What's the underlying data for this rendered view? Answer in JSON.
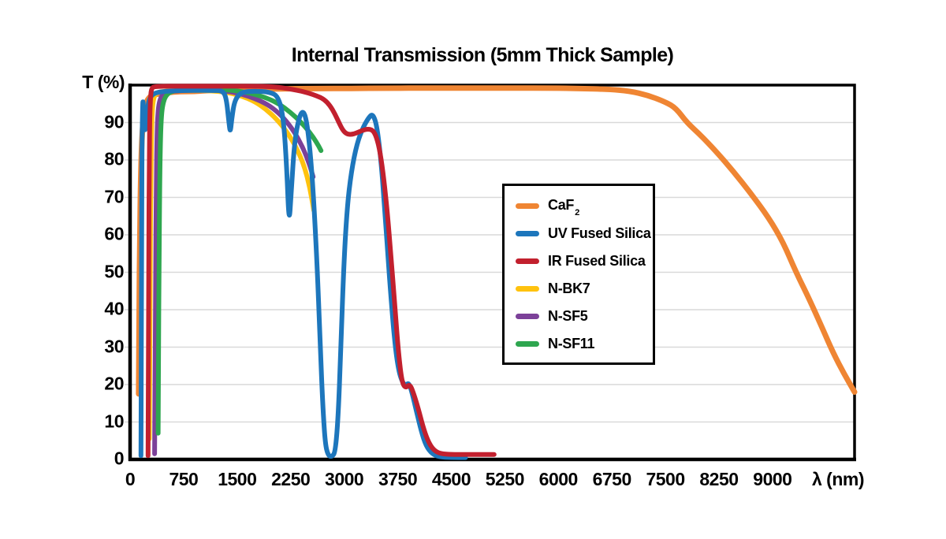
{
  "chart": {
    "title": "Internal Transmission (5mm Thick Sample)",
    "y_axis_label": "T (%)",
    "x_axis_label": "λ (nm)"
  },
  "colors": {
    "caf2": "#EF8533",
    "uv_fused_silica": "#1D76BC",
    "ir_fused_silica": "#C2202E",
    "n_bk7": "#FFC20E",
    "n_sf5": "#7C4199",
    "n_sf11": "#2EA64F",
    "gridline": "#D9D9D9",
    "axis": "#000000",
    "background": "#FFFFFF"
  },
  "legend": {
    "items": [
      {
        "id": "caf2",
        "label": "CaF",
        "sub": "2",
        "color": "#EF8533"
      },
      {
        "id": "uvfs",
        "label": "UV Fused Silica",
        "sub": "",
        "color": "#1D76BC"
      },
      {
        "id": "irfs",
        "label": "IR Fused Silica",
        "sub": "",
        "color": "#C2202E"
      },
      {
        "id": "nbk7",
        "label": "N-BK7",
        "sub": "",
        "color": "#FFC20E"
      },
      {
        "id": "nsf5",
        "label": "N-SF5",
        "sub": "",
        "color": "#7C4199"
      },
      {
        "id": "nsf11",
        "label": "N-SF11",
        "sub": "",
        "color": "#2EA64F"
      }
    ]
  },
  "chart_data": {
    "type": "line",
    "title": "Internal Transmission (5mm Thick Sample)",
    "xlabel": "λ (nm)",
    "ylabel": "T (%)",
    "xlim": [
      0,
      10150
    ],
    "ylim": [
      0,
      100
    ],
    "x_ticks": [
      0,
      750,
      1500,
      2250,
      3000,
      3750,
      4500,
      5250,
      6000,
      6750,
      7500,
      8250,
      9000
    ],
    "y_ticks": [
      0,
      10,
      20,
      30,
      40,
      50,
      60,
      70,
      80,
      90
    ],
    "grid": "horizontal-only",
    "legend_position": "center-right",
    "series": [
      {
        "name": "CaF2",
        "color": "#EF8533",
        "width": 7,
        "points": [
          [
            120,
            17.5
          ],
          [
            128,
            40
          ],
          [
            136,
            60
          ],
          [
            148,
            75
          ],
          [
            163,
            85
          ],
          [
            185,
            91.5
          ],
          [
            210,
            94.5
          ],
          [
            240,
            96
          ],
          [
            280,
            97
          ],
          [
            340,
            97.4
          ],
          [
            420,
            97.7
          ],
          [
            520,
            98
          ],
          [
            700,
            98.3
          ],
          [
            900,
            98.3
          ],
          [
            1100,
            98.6
          ],
          [
            1400,
            98.7
          ],
          [
            1700,
            98.9
          ],
          [
            2100,
            99
          ],
          [
            2600,
            99.1
          ],
          [
            3100,
            99.1
          ],
          [
            3600,
            99.2
          ],
          [
            4200,
            99.2
          ],
          [
            4800,
            99.2
          ],
          [
            5400,
            99.2
          ],
          [
            5900,
            99.2
          ],
          [
            6300,
            99.1
          ],
          [
            6700,
            98.9
          ],
          [
            7000,
            98.4
          ],
          [
            7250,
            97.3
          ],
          [
            7500,
            95.5
          ],
          [
            7650,
            93.8
          ],
          [
            7800,
            90
          ],
          [
            8000,
            86.5
          ],
          [
            8200,
            82.5
          ],
          [
            8450,
            77
          ],
          [
            8700,
            71
          ],
          [
            8950,
            64.5
          ],
          [
            9150,
            58
          ],
          [
            9330,
            50
          ],
          [
            9500,
            43.5
          ],
          [
            9700,
            35
          ],
          [
            9850,
            28.5
          ],
          [
            10000,
            23
          ],
          [
            10150,
            18
          ]
        ]
      },
      {
        "name": "N-BK7",
        "color": "#FFC20E",
        "width": 6,
        "points": [
          [
            270,
            5.5
          ],
          [
            276,
            25
          ],
          [
            283,
            52
          ],
          [
            291,
            75
          ],
          [
            300,
            88
          ],
          [
            313,
            94
          ],
          [
            330,
            96.5
          ],
          [
            360,
            97.8
          ],
          [
            430,
            98.3
          ],
          [
            600,
            98.5
          ],
          [
            850,
            98.6
          ],
          [
            1100,
            98.5
          ],
          [
            1350,
            98.1
          ],
          [
            1550,
            97.2
          ],
          [
            1750,
            95.6
          ],
          [
            1900,
            93.6
          ],
          [
            2050,
            91
          ],
          [
            2200,
            87.5
          ],
          [
            2330,
            83.3
          ],
          [
            2440,
            78.5
          ],
          [
            2520,
            72.5
          ],
          [
            2575,
            66.5
          ]
        ]
      },
      {
        "name": "N-SF5",
        "color": "#7C4199",
        "width": 6,
        "points": [
          [
            343,
            1.5
          ],
          [
            350,
            22
          ],
          [
            358,
            50
          ],
          [
            367,
            74
          ],
          [
            378,
            88
          ],
          [
            393,
            93.5
          ],
          [
            415,
            96
          ],
          [
            455,
            97.5
          ],
          [
            550,
            98.3
          ],
          [
            750,
            98.6
          ],
          [
            1000,
            98.7
          ],
          [
            1250,
            98.6
          ],
          [
            1450,
            98.1
          ],
          [
            1650,
            97.1
          ],
          [
            1850,
            95.6
          ],
          [
            2000,
            93.9
          ],
          [
            2150,
            91.3
          ],
          [
            2300,
            87.6
          ],
          [
            2420,
            83.4
          ],
          [
            2510,
            79
          ],
          [
            2565,
            75.5
          ]
        ]
      },
      {
        "name": "N-SF11",
        "color": "#2EA64F",
        "width": 6,
        "points": [
          [
            393,
            7
          ],
          [
            399,
            28
          ],
          [
            406,
            52
          ],
          [
            415,
            74
          ],
          [
            426,
            86
          ],
          [
            440,
            92
          ],
          [
            460,
            95
          ],
          [
            495,
            97
          ],
          [
            560,
            98.2
          ],
          [
            700,
            98.8
          ],
          [
            950,
            99
          ],
          [
            1250,
            98.9
          ],
          [
            1500,
            98.5
          ],
          [
            1700,
            97.8
          ],
          [
            1900,
            96.7
          ],
          [
            2080,
            95.1
          ],
          [
            2250,
            92.7
          ],
          [
            2400,
            90
          ],
          [
            2520,
            87.3
          ],
          [
            2610,
            84.8
          ],
          [
            2675,
            82.5
          ]
        ]
      },
      {
        "name": "UV Fused Silica",
        "color": "#1D76BC",
        "width": 6,
        "points": [
          [
            152,
            1
          ],
          [
            158,
            35
          ],
          [
            163,
            68
          ],
          [
            168,
            85
          ],
          [
            174,
            93
          ],
          [
            180,
            96.5
          ],
          [
            192,
            92
          ],
          [
            203,
            88.5
          ],
          [
            213,
            87.8
          ],
          [
            228,
            91
          ],
          [
            248,
            94.5
          ],
          [
            275,
            96.5
          ],
          [
            330,
            97.8
          ],
          [
            450,
            98.3
          ],
          [
            650,
            98.5
          ],
          [
            900,
            98.6
          ],
          [
            1150,
            98.6
          ],
          [
            1300,
            98.5
          ],
          [
            1350,
            96.5
          ],
          [
            1388,
            89.5
          ],
          [
            1405,
            87.3
          ],
          [
            1425,
            91
          ],
          [
            1465,
            96
          ],
          [
            1560,
            98.2
          ],
          [
            1750,
            98.4
          ],
          [
            1950,
            98.2
          ],
          [
            2080,
            97
          ],
          [
            2150,
            91
          ],
          [
            2195,
            78
          ],
          [
            2228,
            62.5
          ],
          [
            2258,
            71
          ],
          [
            2300,
            84
          ],
          [
            2355,
            90.5
          ],
          [
            2420,
            93.5
          ],
          [
            2475,
            90.5
          ],
          [
            2530,
            81
          ],
          [
            2580,
            67
          ],
          [
            2625,
            50
          ],
          [
            2665,
            30
          ],
          [
            2700,
            14
          ],
          [
            2735,
            4
          ],
          [
            2775,
            1
          ],
          [
            2830,
            0.7
          ],
          [
            2875,
            2
          ],
          [
            2915,
            11
          ],
          [
            2950,
            28
          ],
          [
            2990,
            50
          ],
          [
            3040,
            67
          ],
          [
            3100,
            77
          ],
          [
            3180,
            84.5
          ],
          [
            3270,
            89
          ],
          [
            3350,
            91.5
          ],
          [
            3400,
            92.3
          ],
          [
            3455,
            89.5
          ],
          [
            3510,
            81
          ],
          [
            3560,
            69
          ],
          [
            3610,
            55
          ],
          [
            3660,
            42
          ],
          [
            3710,
            31
          ],
          [
            3760,
            24
          ],
          [
            3810,
            20.8
          ],
          [
            3860,
            19.6
          ],
          [
            3905,
            20.6
          ],
          [
            3955,
            17.5
          ],
          [
            4010,
            13
          ],
          [
            4080,
            7.5
          ],
          [
            4150,
            3.5
          ],
          [
            4230,
            1.5
          ],
          [
            4330,
            0.7
          ],
          [
            4500,
            0.5
          ],
          [
            4700,
            0.5
          ]
        ]
      },
      {
        "name": "IR Fused Silica",
        "color": "#C2202E",
        "width": 6,
        "points": [
          [
            252,
            1
          ],
          [
            257,
            25
          ],
          [
            262,
            55
          ],
          [
            268,
            80
          ],
          [
            276,
            92
          ],
          [
            288,
            97.5
          ],
          [
            305,
            99.2
          ],
          [
            340,
            99.6
          ],
          [
            450,
            99.7
          ],
          [
            700,
            99.7
          ],
          [
            1000,
            99.7
          ],
          [
            1400,
            99.7
          ],
          [
            1800,
            99.7
          ],
          [
            2050,
            99.5
          ],
          [
            2200,
            99.1
          ],
          [
            2350,
            98.6
          ],
          [
            2500,
            97.9
          ],
          [
            2620,
            97.1
          ],
          [
            2720,
            96.2
          ],
          [
            2800,
            94.6
          ],
          [
            2870,
            92.3
          ],
          [
            2930,
            89.8
          ],
          [
            2985,
            87.8
          ],
          [
            3040,
            86.9
          ],
          [
            3100,
            86.8
          ],
          [
            3170,
            87.2
          ],
          [
            3250,
            87.9
          ],
          [
            3330,
            88.3
          ],
          [
            3400,
            88
          ],
          [
            3450,
            86.3
          ],
          [
            3505,
            82
          ],
          [
            3555,
            75
          ],
          [
            3605,
            66
          ],
          [
            3655,
            54.5
          ],
          [
            3705,
            42
          ],
          [
            3755,
            29.5
          ],
          [
            3805,
            21
          ],
          [
            3855,
            19
          ],
          [
            3920,
            20.2
          ],
          [
            3975,
            17.5
          ],
          [
            4035,
            13.8
          ],
          [
            4100,
            9
          ],
          [
            4170,
            5
          ],
          [
            4250,
            2.5
          ],
          [
            4350,
            1.5
          ],
          [
            4500,
            1.3
          ],
          [
            4700,
            1.3
          ],
          [
            4900,
            1.3
          ],
          [
            5100,
            1.3
          ]
        ]
      }
    ]
  }
}
